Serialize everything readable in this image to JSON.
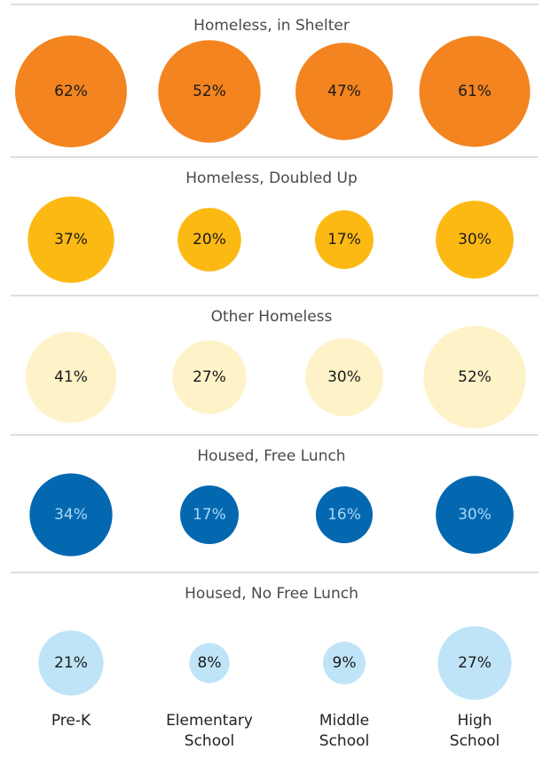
{
  "chart_data": {
    "type": "bubble",
    "categories": [
      "Pre-K",
      "Elementary School",
      "Middle School",
      "High School"
    ],
    "series": [
      {
        "name": "Homeless, in Shelter",
        "color": "#f3841f",
        "values": [
          62,
          52,
          47,
          61
        ],
        "value_labels": [
          "62%",
          "52%",
          "47%",
          "61%"
        ]
      },
      {
        "name": "Homeless, Doubled Up",
        "color": "#fdb913",
        "values": [
          37,
          20,
          17,
          30
        ],
        "value_labels": [
          "37%",
          "20%",
          "17%",
          "30%"
        ]
      },
      {
        "name": "Other Homeless",
        "color": "#fef3c8",
        "values": [
          41,
          27,
          30,
          52
        ],
        "value_labels": [
          "41%",
          "27%",
          "30%",
          "52%"
        ]
      },
      {
        "name": "Housed, Free Lunch",
        "color": "#0468b1",
        "values": [
          34,
          17,
          16,
          30
        ],
        "value_labels": [
          "34%",
          "17%",
          "16%",
          "30%"
        ]
      },
      {
        "name": "Housed, No Free Lunch",
        "color": "#bfe4f8",
        "values": [
          21,
          8,
          9,
          27
        ],
        "value_labels": [
          "21%",
          "8%",
          "9%",
          "27%"
        ]
      }
    ]
  }
}
